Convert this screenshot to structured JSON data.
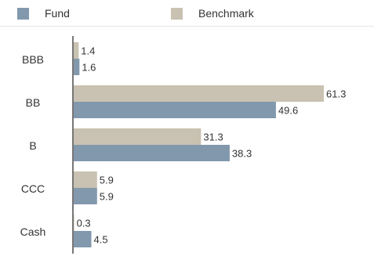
{
  "chart_data": {
    "type": "bar",
    "orientation": "horizontal",
    "categories": [
      "BBB",
      "BB",
      "B",
      "CCC",
      "Cash"
    ],
    "series": [
      {
        "name": "Benchmark",
        "color": "#c9c1b1",
        "values": [
          1.4,
          61.3,
          31.3,
          5.9,
          0.3
        ],
        "labels": [
          "1.4",
          "61.3",
          "31.3",
          "5.9",
          "0.3"
        ]
      },
      {
        "name": "Fund",
        "color": "#8298ad",
        "values": [
          1.6,
          49.6,
          38.3,
          5.9,
          4.5
        ],
        "labels": [
          "1.6",
          "49.6",
          "38.3",
          "5.9",
          "4.5"
        ]
      }
    ],
    "xlim": [
      0,
      65
    ],
    "legend_position": "top",
    "grid": false,
    "axis_color": "#777777"
  },
  "legend": {
    "items": [
      {
        "label": "Fund",
        "color": "#8298ad"
      },
      {
        "label": "Benchmark",
        "color": "#c9c1b1"
      }
    ]
  }
}
